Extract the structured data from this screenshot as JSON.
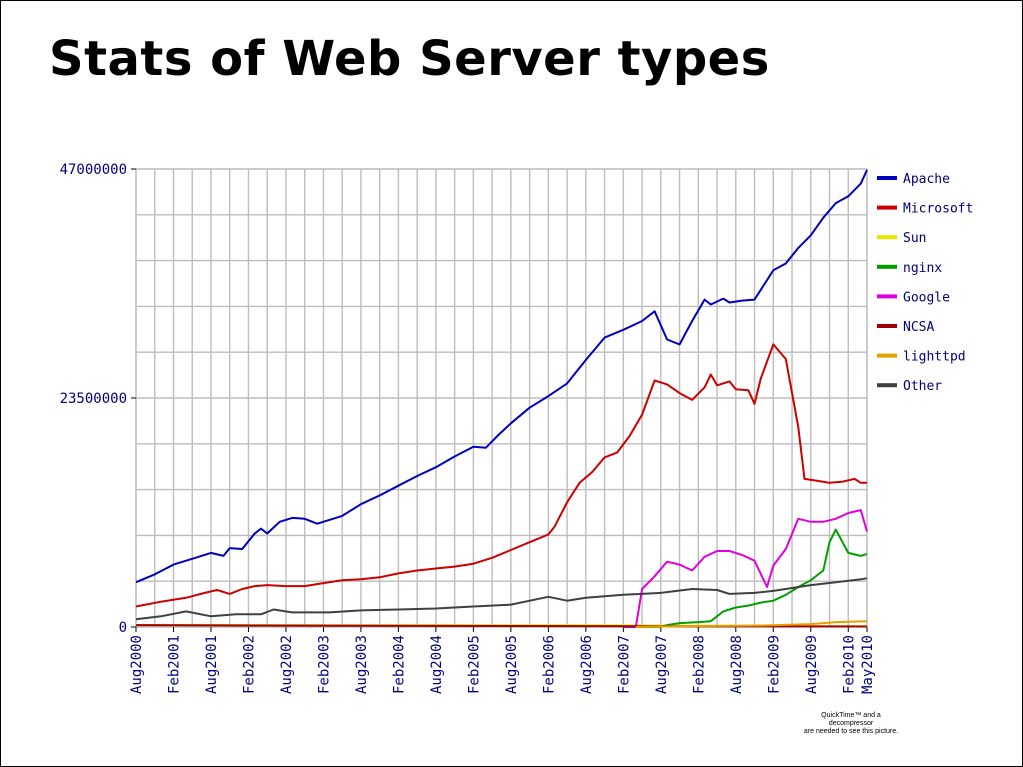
{
  "slide": {
    "title": "Stats of Web Server types",
    "quicktime_note": [
      "QuickTime™ and a",
      "decompressor",
      "are needed to see this picture."
    ]
  },
  "chart_data": {
    "type": "line",
    "title": "Stats of Web Server types",
    "xlabel": "",
    "ylabel": "",
    "ylim": [
      0,
      47000000
    ],
    "y_ticks": [
      "0",
      "23500000",
      "47000000"
    ],
    "x_tick_labels": [
      "Aug2000",
      "Feb2001",
      "Aug2001",
      "Feb2002",
      "Aug2002",
      "Feb2003",
      "Aug2003",
      "Feb2004",
      "Aug2004",
      "Feb2005",
      "Aug2005",
      "Feb2006",
      "Aug2006",
      "Feb2007",
      "Aug2007",
      "Feb2008",
      "Aug2008",
      "Feb2009",
      "Aug2009",
      "Feb2010",
      "May2010"
    ],
    "x_tick_index": [
      0,
      6,
      12,
      18,
      24,
      30,
      36,
      42,
      48,
      54,
      60,
      66,
      72,
      78,
      84,
      90,
      96,
      102,
      108,
      114,
      117
    ],
    "x_range": [
      0,
      117
    ],
    "grid": true,
    "legend_position": "right",
    "series": [
      {
        "name": "Apache",
        "color": "#0000c0",
        "points": [
          [
            0,
            4600000
          ],
          [
            3,
            5400000
          ],
          [
            6,
            6400000
          ],
          [
            9,
            7000000
          ],
          [
            12,
            7600000
          ],
          [
            14,
            7300000
          ],
          [
            15,
            8100000
          ],
          [
            17,
            8000000
          ],
          [
            19,
            9600000
          ],
          [
            20,
            10100000
          ],
          [
            21,
            9600000
          ],
          [
            23,
            10800000
          ],
          [
            25,
            11200000
          ],
          [
            27,
            11100000
          ],
          [
            29,
            10600000
          ],
          [
            31,
            11000000
          ],
          [
            33,
            11400000
          ],
          [
            36,
            12600000
          ],
          [
            39,
            13500000
          ],
          [
            42,
            14500000
          ],
          [
            45,
            15500000
          ],
          [
            48,
            16400000
          ],
          [
            51,
            17500000
          ],
          [
            54,
            18500000
          ],
          [
            56,
            18400000
          ],
          [
            58,
            19700000
          ],
          [
            60,
            20900000
          ],
          [
            63,
            22500000
          ],
          [
            66,
            23700000
          ],
          [
            69,
            25000000
          ],
          [
            72,
            27400000
          ],
          [
            75,
            29700000
          ],
          [
            78,
            30500000
          ],
          [
            81,
            31400000
          ],
          [
            83,
            32400000
          ],
          [
            85,
            29500000
          ],
          [
            87,
            29000000
          ],
          [
            89,
            31400000
          ],
          [
            91,
            33600000
          ],
          [
            92,
            33100000
          ],
          [
            94,
            33700000
          ],
          [
            95,
            33300000
          ],
          [
            97,
            33500000
          ],
          [
            99,
            33600000
          ],
          [
            100,
            34600000
          ],
          [
            102,
            36600000
          ],
          [
            104,
            37300000
          ],
          [
            106,
            38900000
          ],
          [
            108,
            40200000
          ],
          [
            110,
            42000000
          ],
          [
            112,
            43500000
          ],
          [
            114,
            44200000
          ],
          [
            116,
            45500000
          ],
          [
            117,
            46900000
          ]
        ]
      },
      {
        "name": "Microsoft",
        "color": "#cc0000",
        "points": [
          [
            0,
            2100000
          ],
          [
            4,
            2600000
          ],
          [
            8,
            3000000
          ],
          [
            11,
            3500000
          ],
          [
            13,
            3800000
          ],
          [
            15,
            3400000
          ],
          [
            17,
            3900000
          ],
          [
            19,
            4200000
          ],
          [
            21,
            4300000
          ],
          [
            24,
            4200000
          ],
          [
            27,
            4200000
          ],
          [
            30,
            4500000
          ],
          [
            33,
            4800000
          ],
          [
            36,
            4900000
          ],
          [
            39,
            5100000
          ],
          [
            42,
            5500000
          ],
          [
            45,
            5800000
          ],
          [
            48,
            6000000
          ],
          [
            51,
            6200000
          ],
          [
            54,
            6500000
          ],
          [
            57,
            7100000
          ],
          [
            60,
            7900000
          ],
          [
            63,
            8700000
          ],
          [
            66,
            9500000
          ],
          [
            67,
            10300000
          ],
          [
            69,
            12800000
          ],
          [
            71,
            14800000
          ],
          [
            73,
            15900000
          ],
          [
            75,
            17400000
          ],
          [
            77,
            17900000
          ],
          [
            79,
            19600000
          ],
          [
            81,
            21800000
          ],
          [
            83,
            25300000
          ],
          [
            85,
            24900000
          ],
          [
            87,
            24000000
          ],
          [
            89,
            23300000
          ],
          [
            91,
            24600000
          ],
          [
            92,
            25900000
          ],
          [
            93,
            24800000
          ],
          [
            95,
            25200000
          ],
          [
            96,
            24400000
          ],
          [
            98,
            24300000
          ],
          [
            99,
            22900000
          ],
          [
            100,
            25500000
          ],
          [
            102,
            29000000
          ],
          [
            104,
            27500000
          ],
          [
            106,
            20500000
          ],
          [
            107,
            15200000
          ],
          [
            109,
            15000000
          ],
          [
            111,
            14800000
          ],
          [
            113,
            14900000
          ],
          [
            115,
            15200000
          ],
          [
            116,
            14800000
          ],
          [
            117,
            14800000
          ]
        ]
      },
      {
        "name": "Sun",
        "color": "#e6e600",
        "points": [
          [
            0,
            200000
          ],
          [
            10,
            220000
          ],
          [
            20,
            200000
          ],
          [
            30,
            180000
          ],
          [
            40,
            180000
          ],
          [
            50,
            200000
          ],
          [
            60,
            180000
          ],
          [
            70,
            180000
          ],
          [
            80,
            150000
          ],
          [
            90,
            120000
          ],
          [
            100,
            100000
          ],
          [
            110,
            80000
          ],
          [
            117,
            70000
          ]
        ]
      },
      {
        "name": "nginx",
        "color": "#00a000",
        "points": [
          [
            80,
            0
          ],
          [
            84,
            0
          ],
          [
            85,
            200000
          ],
          [
            87,
            400000
          ],
          [
            90,
            500000
          ],
          [
            92,
            600000
          ],
          [
            94,
            1600000
          ],
          [
            96,
            2000000
          ],
          [
            98,
            2200000
          ],
          [
            100,
            2500000
          ],
          [
            102,
            2700000
          ],
          [
            104,
            3300000
          ],
          [
            106,
            4100000
          ],
          [
            108,
            4800000
          ],
          [
            110,
            5800000
          ],
          [
            111,
            8700000
          ],
          [
            112,
            10000000
          ],
          [
            114,
            7600000
          ],
          [
            116,
            7300000
          ],
          [
            117,
            7500000
          ]
        ]
      },
      {
        "name": "Google",
        "color": "#e000e0",
        "points": [
          [
            78,
            0
          ],
          [
            80,
            0
          ],
          [
            81,
            3900000
          ],
          [
            83,
            5200000
          ],
          [
            85,
            6700000
          ],
          [
            87,
            6400000
          ],
          [
            89,
            5800000
          ],
          [
            91,
            7200000
          ],
          [
            93,
            7800000
          ],
          [
            95,
            7800000
          ],
          [
            97,
            7400000
          ],
          [
            99,
            6800000
          ],
          [
            101,
            4100000
          ],
          [
            102,
            6300000
          ],
          [
            104,
            8000000
          ],
          [
            106,
            11100000
          ],
          [
            108,
            10800000
          ],
          [
            110,
            10800000
          ],
          [
            112,
            11100000
          ],
          [
            114,
            11700000
          ],
          [
            116,
            12000000
          ],
          [
            117,
            9800000
          ]
        ]
      },
      {
        "name": "NCSA",
        "color": "#a00000",
        "points": [
          [
            0,
            200000
          ],
          [
            20,
            150000
          ],
          [
            40,
            120000
          ],
          [
            60,
            100000
          ],
          [
            80,
            80000
          ],
          [
            100,
            60000
          ],
          [
            117,
            50000
          ]
        ]
      },
      {
        "name": "lighttpd",
        "color": "#e8a000",
        "points": [
          [
            80,
            0
          ],
          [
            90,
            100000
          ],
          [
            100,
            150000
          ],
          [
            108,
            300000
          ],
          [
            112,
            500000
          ],
          [
            117,
            600000
          ]
        ]
      },
      {
        "name": "Other",
        "color": "#404040",
        "points": [
          [
            0,
            800000
          ],
          [
            4,
            1100000
          ],
          [
            8,
            1600000
          ],
          [
            12,
            1100000
          ],
          [
            16,
            1300000
          ],
          [
            20,
            1300000
          ],
          [
            22,
            1800000
          ],
          [
            25,
            1500000
          ],
          [
            28,
            1500000
          ],
          [
            31,
            1500000
          ],
          [
            36,
            1700000
          ],
          [
            42,
            1800000
          ],
          [
            48,
            1900000
          ],
          [
            54,
            2100000
          ],
          [
            60,
            2300000
          ],
          [
            66,
            3100000
          ],
          [
            69,
            2700000
          ],
          [
            72,
            3000000
          ],
          [
            78,
            3300000
          ],
          [
            84,
            3500000
          ],
          [
            89,
            3900000
          ],
          [
            93,
            3800000
          ],
          [
            95,
            3400000
          ],
          [
            99,
            3500000
          ],
          [
            102,
            3700000
          ],
          [
            105,
            4000000
          ],
          [
            108,
            4300000
          ],
          [
            112,
            4600000
          ],
          [
            116,
            4900000
          ],
          [
            117,
            5000000
          ]
        ]
      }
    ]
  }
}
